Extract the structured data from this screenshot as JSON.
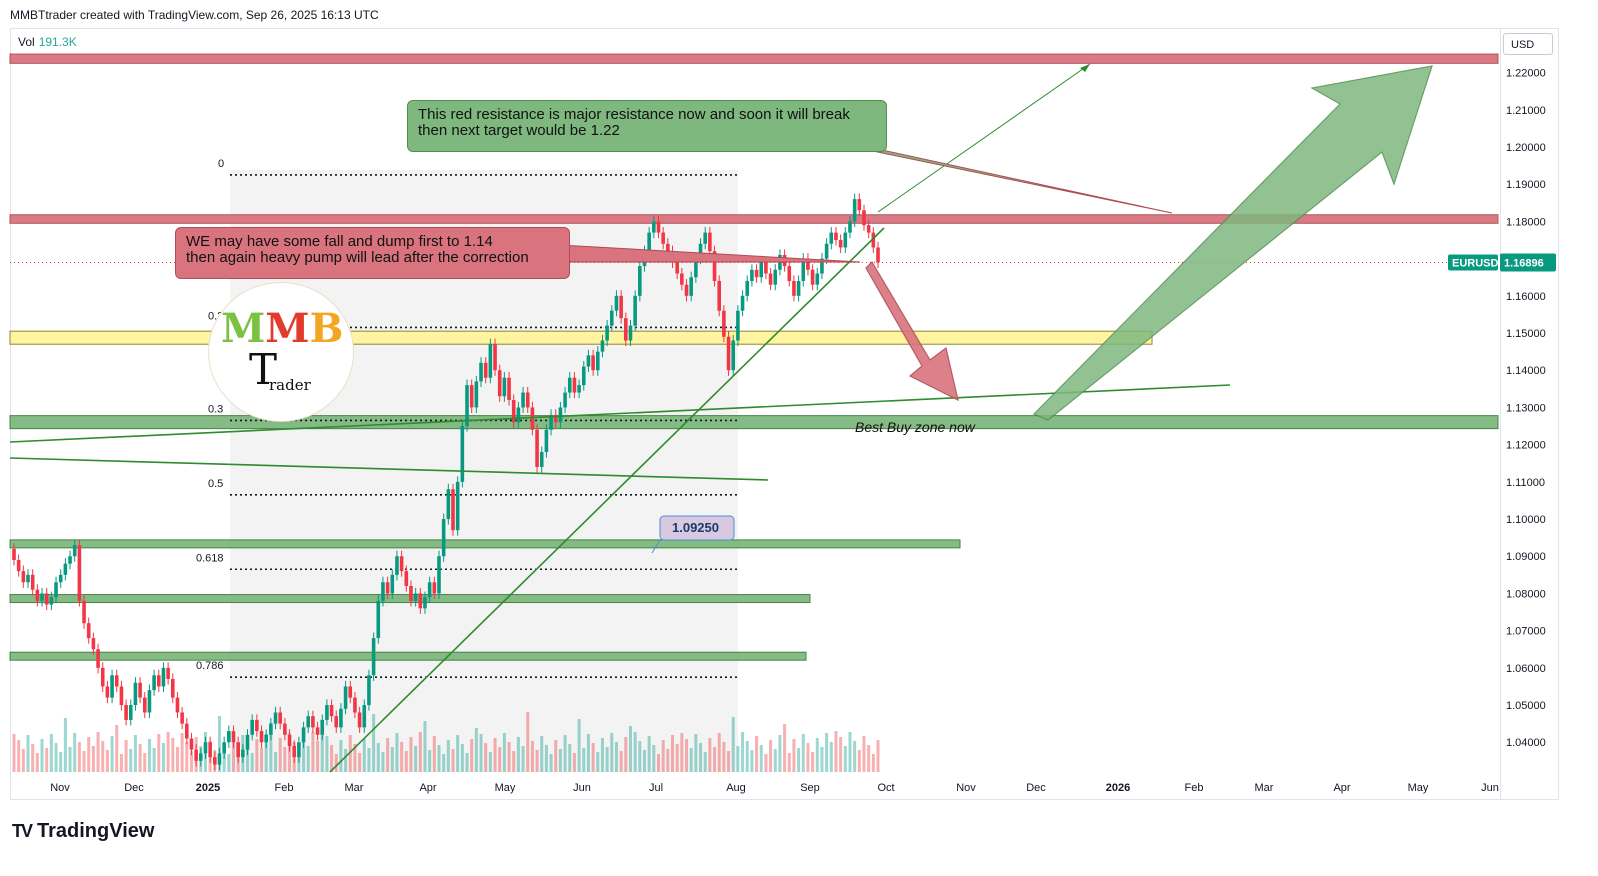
{
  "header": {
    "title": "MMBTtrader created with TradingView.com, Sep 26, 2025 16:13 UTC"
  },
  "volume": {
    "label": "Vol",
    "value": "191.3K"
  },
  "currency_button": "USD",
  "brand": {
    "name": "TradingView",
    "mark": "TV"
  },
  "logo": {
    "letters": [
      "M",
      "M",
      "B"
    ],
    "t": "T",
    "sub": "rader"
  },
  "annotations": {
    "green": {
      "line1": "This red resistance is major resistance now and soon it will break",
      "line2": "then next target would be 1.22"
    },
    "red": {
      "line1": "WE may have some fall and dump first to 1.14",
      "line2": "then again heavy pump will lead after the correction"
    },
    "buy_zone": "Best Buy zone now",
    "price_tag": "1.09250"
  },
  "colors": {
    "up": "#26a69a",
    "down": "#ef5350",
    "resistance": "#d9737e",
    "support": "#6fae6f",
    "yellow_zone": "#fff59d"
  },
  "chart_data": {
    "type": "candlestick",
    "symbol": "EURUSD",
    "last_price": "1.16896",
    "ylim": [
      1.032,
      1.232
    ],
    "y_ticks": [
      "1.22000",
      "1.21000",
      "1.20000",
      "1.19000",
      "1.18000",
      "1.17000",
      "1.16000",
      "1.15000",
      "1.14000",
      "1.13000",
      "1.12000",
      "1.11000",
      "1.10000",
      "1.09000",
      "1.08000",
      "1.07000",
      "1.06000",
      "1.05000",
      "1.04000"
    ],
    "x_ticks": [
      "Nov",
      "Dec",
      "2025",
      "Feb",
      "Mar",
      "Apr",
      "May",
      "Jun",
      "Jul",
      "Aug",
      "Sep",
      "Oct",
      "Nov",
      "Dec",
      "2026",
      "Feb",
      "Mar",
      "Apr",
      "May",
      "Jun"
    ],
    "fib_levels": [
      {
        "label": "0",
        "price": 1.1925
      },
      {
        "label": "0.2",
        "price": 1.1515
      },
      {
        "label": "0.3",
        "price": 1.1265
      },
      {
        "label": "0.5",
        "price": 1.1065
      },
      {
        "label": "0.618",
        "price": 1.0865
      },
      {
        "label": "0.786",
        "price": 1.0575
      }
    ],
    "zones": [
      {
        "kind": "resistance",
        "from": 1.2225,
        "to": 1.225
      },
      {
        "kind": "resistance",
        "from": 1.1795,
        "to": 1.1818
      },
      {
        "kind": "yellow",
        "from": 1.147,
        "to": 1.1505
      },
      {
        "kind": "buy",
        "from": 1.1243,
        "to": 1.1278
      },
      {
        "kind": "support",
        "from": 1.0929,
        "to": 1.0944
      },
      {
        "kind": "support",
        "from": 1.0782,
        "to": 1.0797
      },
      {
        "kind": "support",
        "from": 1.0627,
        "to": 1.0642
      }
    ],
    "candles": [
      [
        1.092,
        1.089
      ],
      [
        1.089,
        1.086
      ],
      [
        1.086,
        1.083
      ],
      [
        1.083,
        1.085
      ],
      [
        1.085,
        1.081
      ],
      [
        1.081,
        1.078
      ],
      [
        1.078,
        1.08
      ],
      [
        1.08,
        1.077
      ],
      [
        1.077,
        1.079
      ],
      [
        1.079,
        1.083
      ],
      [
        1.083,
        1.085
      ],
      [
        1.085,
        1.088
      ],
      [
        1.088,
        1.09
      ],
      [
        1.09,
        1.093
      ],
      [
        1.093,
        1.078
      ],
      [
        1.078,
        1.072
      ],
      [
        1.072,
        1.068
      ],
      [
        1.068,
        1.065
      ],
      [
        1.065,
        1.06
      ],
      [
        1.06,
        1.055
      ],
      [
        1.055,
        1.052
      ],
      [
        1.052,
        1.058
      ],
      [
        1.058,
        1.055
      ],
      [
        1.055,
        1.05
      ],
      [
        1.05,
        1.046
      ],
      [
        1.046,
        1.05
      ],
      [
        1.05,
        1.056
      ],
      [
        1.056,
        1.052
      ],
      [
        1.052,
        1.048
      ],
      [
        1.048,
        1.054
      ],
      [
        1.054,
        1.058
      ],
      [
        1.058,
        1.055
      ],
      [
        1.055,
        1.06
      ],
      [
        1.06,
        1.057
      ],
      [
        1.057,
        1.052
      ],
      [
        1.052,
        1.048
      ],
      [
        1.048,
        1.045
      ],
      [
        1.045,
        1.041
      ],
      [
        1.041,
        1.038
      ],
      [
        1.038,
        1.035
      ],
      [
        1.035,
        1.037
      ],
      [
        1.037,
        1.04
      ],
      [
        1.04,
        1.036
      ],
      [
        1.036,
        1.034
      ],
      [
        1.034,
        1.037
      ],
      [
        1.037,
        1.04
      ],
      [
        1.04,
        1.043
      ],
      [
        1.043,
        1.04
      ],
      [
        1.04,
        1.036
      ],
      [
        1.036,
        1.038
      ],
      [
        1.038,
        1.042
      ],
      [
        1.042,
        1.046
      ],
      [
        1.046,
        1.043
      ],
      [
        1.043,
        1.04
      ],
      [
        1.04,
        1.042
      ],
      [
        1.042,
        1.045
      ],
      [
        1.045,
        1.048
      ],
      [
        1.048,
        1.045
      ],
      [
        1.045,
        1.042
      ],
      [
        1.042,
        1.039
      ],
      [
        1.039,
        1.036
      ],
      [
        1.036,
        1.04
      ],
      [
        1.04,
        1.044
      ],
      [
        1.044,
        1.047
      ],
      [
        1.047,
        1.044
      ],
      [
        1.044,
        1.042
      ],
      [
        1.042,
        1.046
      ],
      [
        1.046,
        1.05
      ],
      [
        1.05,
        1.047
      ],
      [
        1.047,
        1.044
      ],
      [
        1.044,
        1.049
      ],
      [
        1.049,
        1.055
      ],
      [
        1.055,
        1.052
      ],
      [
        1.052,
        1.048
      ],
      [
        1.048,
        1.044
      ],
      [
        1.044,
        1.05
      ],
      [
        1.05,
        1.058
      ],
      [
        1.058,
        1.068
      ],
      [
        1.068,
        1.078
      ],
      [
        1.078,
        1.083
      ],
      [
        1.083,
        1.08
      ],
      [
        1.08,
        1.085
      ],
      [
        1.085,
        1.09
      ],
      [
        1.09,
        1.086
      ],
      [
        1.086,
        1.082
      ],
      [
        1.082,
        1.078
      ],
      [
        1.078,
        1.08
      ],
      [
        1.08,
        1.076
      ],
      [
        1.076,
        1.079
      ],
      [
        1.079,
        1.083
      ],
      [
        1.083,
        1.08
      ],
      [
        1.08,
        1.09
      ],
      [
        1.09,
        1.1
      ],
      [
        1.1,
        1.108
      ],
      [
        1.108,
        1.097
      ],
      [
        1.097,
        1.11
      ],
      [
        1.11,
        1.125
      ],
      [
        1.125,
        1.136
      ],
      [
        1.136,
        1.13
      ],
      [
        1.13,
        1.137
      ],
      [
        1.137,
        1.142
      ],
      [
        1.142,
        1.138
      ],
      [
        1.138,
        1.147
      ],
      [
        1.147,
        1.14
      ],
      [
        1.14,
        1.133
      ],
      [
        1.133,
        1.138
      ],
      [
        1.138,
        1.132
      ],
      [
        1.132,
        1.126
      ],
      [
        1.126,
        1.13
      ],
      [
        1.13,
        1.134
      ],
      [
        1.134,
        1.13
      ],
      [
        1.13,
        1.124
      ],
      [
        1.124,
        1.114
      ],
      [
        1.114,
        1.118
      ],
      [
        1.118,
        1.124
      ],
      [
        1.124,
        1.128
      ],
      [
        1.128,
        1.126
      ],
      [
        1.126,
        1.13
      ],
      [
        1.13,
        1.134
      ],
      [
        1.134,
        1.138
      ],
      [
        1.138,
        1.134
      ],
      [
        1.134,
        1.136
      ],
      [
        1.136,
        1.141
      ],
      [
        1.141,
        1.144
      ],
      [
        1.144,
        1.14
      ],
      [
        1.14,
        1.145
      ],
      [
        1.145,
        1.148
      ],
      [
        1.148,
        1.152
      ],
      [
        1.152,
        1.156
      ],
      [
        1.156,
        1.16
      ],
      [
        1.16,
        1.154
      ],
      [
        1.154,
        1.148
      ],
      [
        1.148,
        1.152
      ],
      [
        1.152,
        1.16
      ],
      [
        1.16,
        1.168
      ],
      [
        1.168,
        1.172
      ],
      [
        1.172,
        1.177
      ],
      [
        1.177,
        1.18
      ],
      [
        1.18,
        1.177
      ],
      [
        1.177,
        1.174
      ],
      [
        1.174,
        1.172
      ],
      [
        1.172,
        1.169
      ],
      [
        1.169,
        1.166
      ],
      [
        1.166,
        1.163
      ],
      [
        1.163,
        1.16
      ],
      [
        1.16,
        1.165
      ],
      [
        1.165,
        1.17
      ],
      [
        1.17,
        1.174
      ],
      [
        1.174,
        1.177
      ],
      [
        1.177,
        1.172
      ],
      [
        1.172,
        1.164
      ],
      [
        1.164,
        1.156
      ],
      [
        1.156,
        1.149
      ],
      [
        1.149,
        1.14
      ],
      [
        1.14,
        1.148
      ],
      [
        1.148,
        1.156
      ],
      [
        1.156,
        1.16
      ],
      [
        1.16,
        1.164
      ],
      [
        1.164,
        1.167
      ],
      [
        1.167,
        1.165
      ],
      [
        1.165,
        1.169
      ],
      [
        1.169,
        1.166
      ],
      [
        1.166,
        1.163
      ],
      [
        1.163,
        1.167
      ],
      [
        1.167,
        1.171
      ],
      [
        1.171,
        1.168
      ],
      [
        1.168,
        1.164
      ],
      [
        1.164,
        1.16
      ],
      [
        1.16,
        1.164
      ],
      [
        1.164,
        1.17
      ],
      [
        1.17,
        1.167
      ],
      [
        1.167,
        1.163
      ],
      [
        1.163,
        1.166
      ],
      [
        1.166,
        1.17
      ],
      [
        1.17,
        1.174
      ],
      [
        1.174,
        1.177
      ],
      [
        1.177,
        1.175
      ],
      [
        1.175,
        1.173
      ],
      [
        1.173,
        1.177
      ],
      [
        1.177,
        1.18
      ],
      [
        1.18,
        1.186
      ],
      [
        1.186,
        1.183
      ],
      [
        1.183,
        1.179
      ],
      [
        1.179,
        1.177
      ],
      [
        1.177,
        1.173
      ],
      [
        1.173,
        1.169
      ]
    ]
  }
}
